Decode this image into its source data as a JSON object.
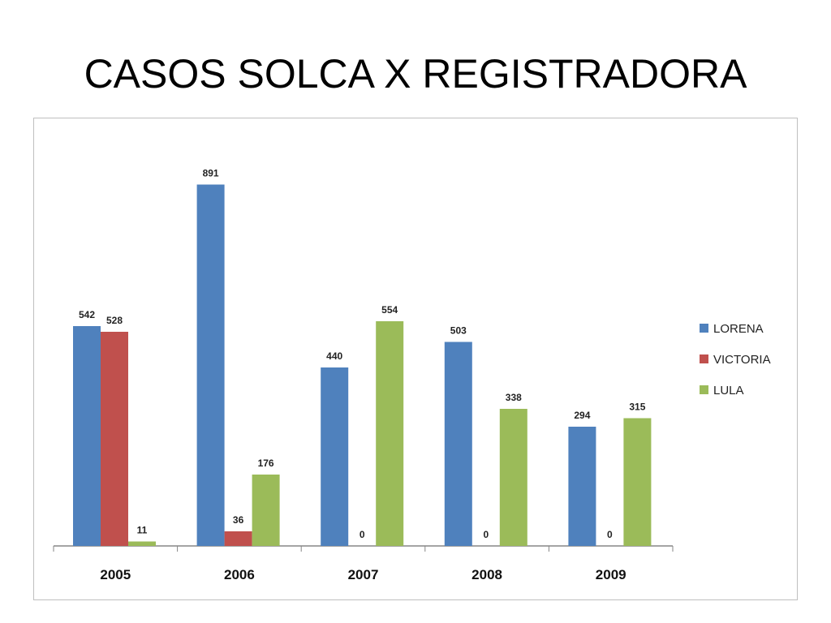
{
  "slide": {
    "title": "CASOS SOLCA X REGISTRADORA"
  },
  "colors": {
    "LORENA": "#4f81bd",
    "VICTORIA": "#c0504d",
    "LULA": "#9bbb59",
    "axis": "#868686"
  },
  "chart_data": {
    "type": "bar",
    "title": "",
    "xlabel": "",
    "ylabel": "",
    "categories": [
      "2005",
      "2006",
      "2007",
      "2008",
      "2009"
    ],
    "series": [
      {
        "name": "LORENA",
        "values": [
          542,
          891,
          440,
          503,
          294
        ]
      },
      {
        "name": "VICTORIA",
        "values": [
          528,
          36,
          0,
          0,
          0
        ]
      },
      {
        "name": "LULA",
        "values": [
          11,
          176,
          554,
          338,
          315
        ]
      }
    ],
    "data_labels": true,
    "ylim": [
      0,
      1000
    ],
    "grid": false,
    "legend": "right"
  }
}
